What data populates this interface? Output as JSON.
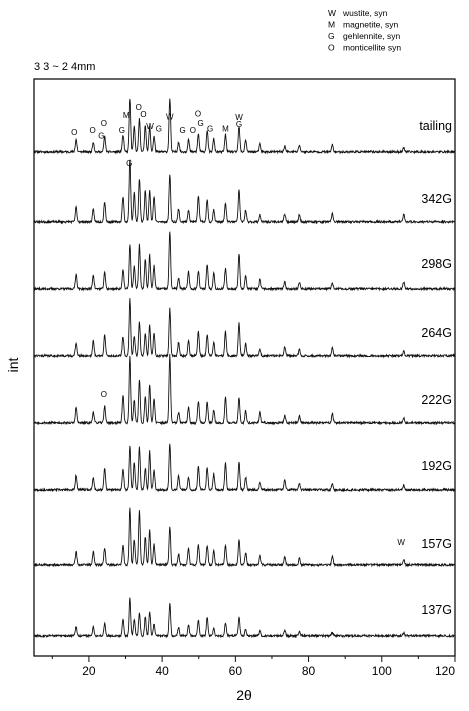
{
  "chart_data": {
    "type": "line",
    "title": "3 3 ~ 2 4mm",
    "xlabel": "2θ",
    "ylabel": "int",
    "xlim": [
      5,
      120
    ],
    "xticks": [
      20,
      40,
      60,
      80,
      100,
      120
    ],
    "legend_position": "top-right",
    "grid": false,
    "legend": [
      {
        "symbol": "W",
        "name": "wustite, syn"
      },
      {
        "symbol": "M",
        "name": "magnetite, syn"
      },
      {
        "symbol": "G",
        "name": "gehlennite, syn"
      },
      {
        "symbol": "O",
        "name": "monticellite syn"
      }
    ],
    "peaks": [
      {
        "x": 16.5,
        "h": 0.28
      },
      {
        "x": 21.2,
        "h": 0.22
      },
      {
        "x": 24.3,
        "h": 0.33
      },
      {
        "x": 29.3,
        "h": 0.42
      },
      {
        "x": 31.2,
        "h": 0.95
      },
      {
        "x": 32.4,
        "h": 0.42
      },
      {
        "x": 33.8,
        "h": 0.82
      },
      {
        "x": 35.4,
        "h": 0.48
      },
      {
        "x": 36.6,
        "h": 0.62
      },
      {
        "x": 37.8,
        "h": 0.35
      },
      {
        "x": 42.1,
        "h": 0.92
      },
      {
        "x": 44.5,
        "h": 0.22
      },
      {
        "x": 47.2,
        "h": 0.26
      },
      {
        "x": 49.9,
        "h": 0.38
      },
      {
        "x": 52.3,
        "h": 0.42
      },
      {
        "x": 54.1,
        "h": 0.24
      },
      {
        "x": 57.3,
        "h": 0.36
      },
      {
        "x": 61.0,
        "h": 0.5
      },
      {
        "x": 62.8,
        "h": 0.22
      },
      {
        "x": 66.7,
        "h": 0.16
      },
      {
        "x": 73.5,
        "h": 0.14
      },
      {
        "x": 77.5,
        "h": 0.12
      },
      {
        "x": 86.5,
        "h": 0.12
      },
      {
        "x": 106.0,
        "h": 0.1
      }
    ],
    "series": [
      {
        "name": "tailing",
        "scale": 0.85,
        "seed": 11
      },
      {
        "name": "342G",
        "scale": 1.0,
        "seed": 23
      },
      {
        "name": "298G",
        "scale": 1.0,
        "seed": 37
      },
      {
        "name": "264G",
        "scale": 0.9,
        "seed": 41
      },
      {
        "name": "222G",
        "scale": 1.05,
        "seed": 53
      },
      {
        "name": "192G",
        "scale": 1.0,
        "seed": 67
      },
      {
        "name": "157G",
        "scale": 0.9,
        "seed": 71
      },
      {
        "name": "137G",
        "scale": 0.6,
        "seed": 83
      }
    ],
    "annotations": [
      {
        "series": "tailing",
        "label": "O",
        "x": 16.0,
        "level": 0.3
      },
      {
        "series": "tailing",
        "label": "O",
        "x": 21.0,
        "level": 0.33
      },
      {
        "series": "tailing",
        "label": "G",
        "x": 23.4,
        "level": 0.24
      },
      {
        "series": "tailing",
        "label": "O",
        "x": 24.1,
        "level": 0.45
      },
      {
        "series": "tailing",
        "label": "G",
        "x": 29.0,
        "level": 0.33
      },
      {
        "series": "tailing",
        "label": "M",
        "x": 30.2,
        "level": 0.58
      },
      {
        "series": "tailing",
        "label": "O",
        "x": 33.6,
        "level": 0.72
      },
      {
        "series": "tailing",
        "label": "O",
        "x": 34.9,
        "level": 0.6
      },
      {
        "series": "tailing",
        "label": "W",
        "x": 36.7,
        "level": 0.4
      },
      {
        "series": "tailing",
        "label": "G",
        "x": 39.1,
        "level": 0.36
      },
      {
        "series": "tailing",
        "label": "W",
        "x": 42.1,
        "level": 0.56
      },
      {
        "series": "tailing",
        "label": "G",
        "x": 45.6,
        "level": 0.33
      },
      {
        "series": "tailing",
        "label": "O",
        "x": 48.4,
        "level": 0.33
      },
      {
        "series": "tailing",
        "label": "O",
        "x": 49.8,
        "level": 0.61
      },
      {
        "series": "tailing",
        "label": "G",
        "x": 50.5,
        "level": 0.45
      },
      {
        "series": "tailing",
        "label": "G",
        "x": 53.1,
        "level": 0.36
      },
      {
        "series": "tailing",
        "label": "M",
        "x": 57.3,
        "level": 0.36
      },
      {
        "series": "tailing",
        "label": "W",
        "x": 61.0,
        "level": 0.55
      },
      {
        "series": "tailing",
        "label": "G",
        "x": 61.0,
        "level": 0.43
      },
      {
        "series": "342G",
        "label": "G",
        "x": 31.0,
        "level": 0.95
      },
      {
        "series": "222G",
        "label": "O",
        "x": 24.1,
        "level": 0.45
      },
      {
        "series": "157G",
        "label": "W",
        "x": 105.3,
        "level": 0.35
      }
    ]
  }
}
